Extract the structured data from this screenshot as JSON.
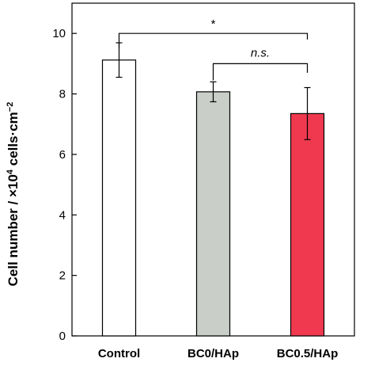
{
  "chart_data": {
    "type": "bar",
    "categories": [
      "Control",
      "BC0/HAp",
      "BC0.5/HAp"
    ],
    "values": [
      9.12,
      8.07,
      7.35
    ],
    "errors": [
      0.57,
      0.33,
      0.86
    ],
    "colors": [
      "#ffffff",
      "#c9cfc8",
      "#f0394f"
    ],
    "ylim": [
      0,
      11
    ],
    "yticks": [
      "0",
      "2",
      "4",
      "6",
      "8",
      "10"
    ],
    "ytick_values": [
      0,
      2,
      4,
      6,
      8,
      10
    ],
    "ylabel": {
      "prefix": "Cell number / ×10",
      "exponent": "4",
      "unit": " cells·cm",
      "unit_exponent": "−2"
    },
    "significance": [
      {
        "label": "*",
        "from": 0,
        "to": 2,
        "y": 10.0,
        "drop_left": 0.5,
        "drop_right": 0.2
      },
      {
        "label": "n.s.",
        "from": 1,
        "to": 2,
        "y": 9.0,
        "drop_left": 0.55,
        "drop_right": 0.3
      }
    ],
    "grid": false
  }
}
